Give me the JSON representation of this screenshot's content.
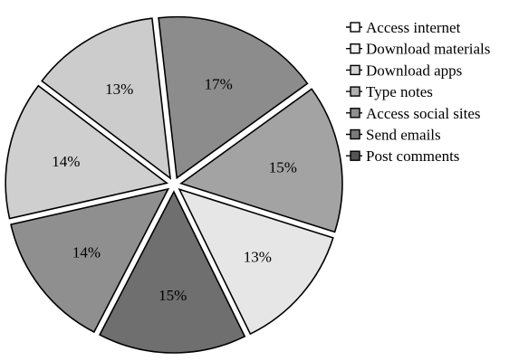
{
  "chart_data": {
    "type": "pie",
    "title": "",
    "exploded": true,
    "legend_position": "top-right",
    "slices": [
      {
        "label": "Access internet",
        "value": 13,
        "display": "13%",
        "color": "#e6e6e6"
      },
      {
        "label": "Download materials",
        "value": 15,
        "display": "15%",
        "color": "#a3a3a3"
      },
      {
        "label": "Download apps",
        "value": 17,
        "display": "17%",
        "color": "#8c8c8c"
      },
      {
        "label": "Type notes",
        "value": 13,
        "display": "13%",
        "color": "#cccccc"
      },
      {
        "label": "Access social sites",
        "value": 14,
        "display": "14%",
        "color": "#cfcfcf"
      },
      {
        "label": "Send emails",
        "value": 14,
        "display": "14%",
        "color": "#8f8f8f"
      },
      {
        "label": "Post comments",
        "value": 15,
        "display": "15%",
        "color": "#6f6f6f"
      }
    ],
    "legend": [
      {
        "label": "Access internet",
        "color": "#ffffff"
      },
      {
        "label": "Download materials",
        "color": "#efefef"
      },
      {
        "label": "Download apps",
        "color": "#d2d2d2"
      },
      {
        "label": "Type notes",
        "color": "#b0b0b0"
      },
      {
        "label": "Access social sites",
        "color": "#8f8f8f"
      },
      {
        "label": "Send emails",
        "color": "#7a7a7a"
      },
      {
        "label": "Post comments",
        "color": "#555555"
      }
    ]
  }
}
